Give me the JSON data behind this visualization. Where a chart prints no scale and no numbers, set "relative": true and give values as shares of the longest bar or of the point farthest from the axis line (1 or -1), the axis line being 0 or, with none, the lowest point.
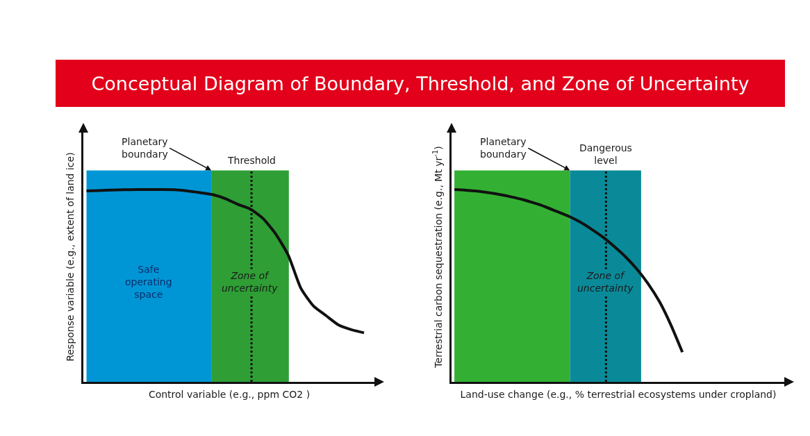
{
  "chart_data": [
    {
      "type": "line",
      "title": "Conceptual Diagram of Boundary, Threshold, and Zone of Uncertainty",
      "xlabel": "Control variable (e.g., ppm CO2 )",
      "ylabel": "Response variable (e.g., extent of land ice)",
      "relative": true,
      "marker": "none",
      "line_style": "solid",
      "categories": [
        null,
        null,
        null,
        null,
        null,
        null,
        null,
        null,
        null,
        null,
        null,
        null,
        null,
        null,
        null,
        null,
        null,
        null,
        null,
        null,
        null,
        null,
        null
      ],
      "series": [
        {
          "color": "#111111",
          "values": [
            0.993,
            0.995,
            0.998,
            0.999,
            1,
            1,
            1,
            0.999,
            0.993,
            0.984,
            0.974,
            0.953,
            0.923,
            0.898,
            0.849,
            0.769,
            0.658,
            0.486,
            0.394,
            0.344,
            0.295,
            0.271,
            0.255
          ]
        }
      ],
      "annotations": [
        "Planetary boundary",
        "Threshold",
        "Safe operating space",
        "Zone of uncertainty"
      ]
    },
    {
      "type": "line",
      "xlabel": "Land-use change (e.g., % terrestrial ecosystems under cropland)",
      "ylabel": "Terrestrial carbon sequestration (e.g., Mt yr$^{-1}$)",
      "relative": true,
      "marker": "none",
      "line_style": "solid",
      "categories": [
        null,
        null,
        null,
        null,
        null,
        null,
        null,
        null,
        null,
        null,
        null,
        null,
        null,
        null,
        null,
        null,
        null,
        null,
        null,
        null,
        null
      ],
      "series": [
        {
          "color": "#111111",
          "values": [
            1,
            0.997,
            0.992,
            0.984,
            0.974,
            0.962,
            0.948,
            0.93,
            0.91,
            0.886,
            0.862,
            0.832,
            0.795,
            0.754,
            0.705,
            0.651,
            0.587,
            0.51,
            0.416,
            0.295,
            0.154
          ]
        }
      ],
      "annotations": [
        "Planetary boundary",
        "Dangerous level",
        "Zone of uncertainty"
      ]
    }
  ]
}
